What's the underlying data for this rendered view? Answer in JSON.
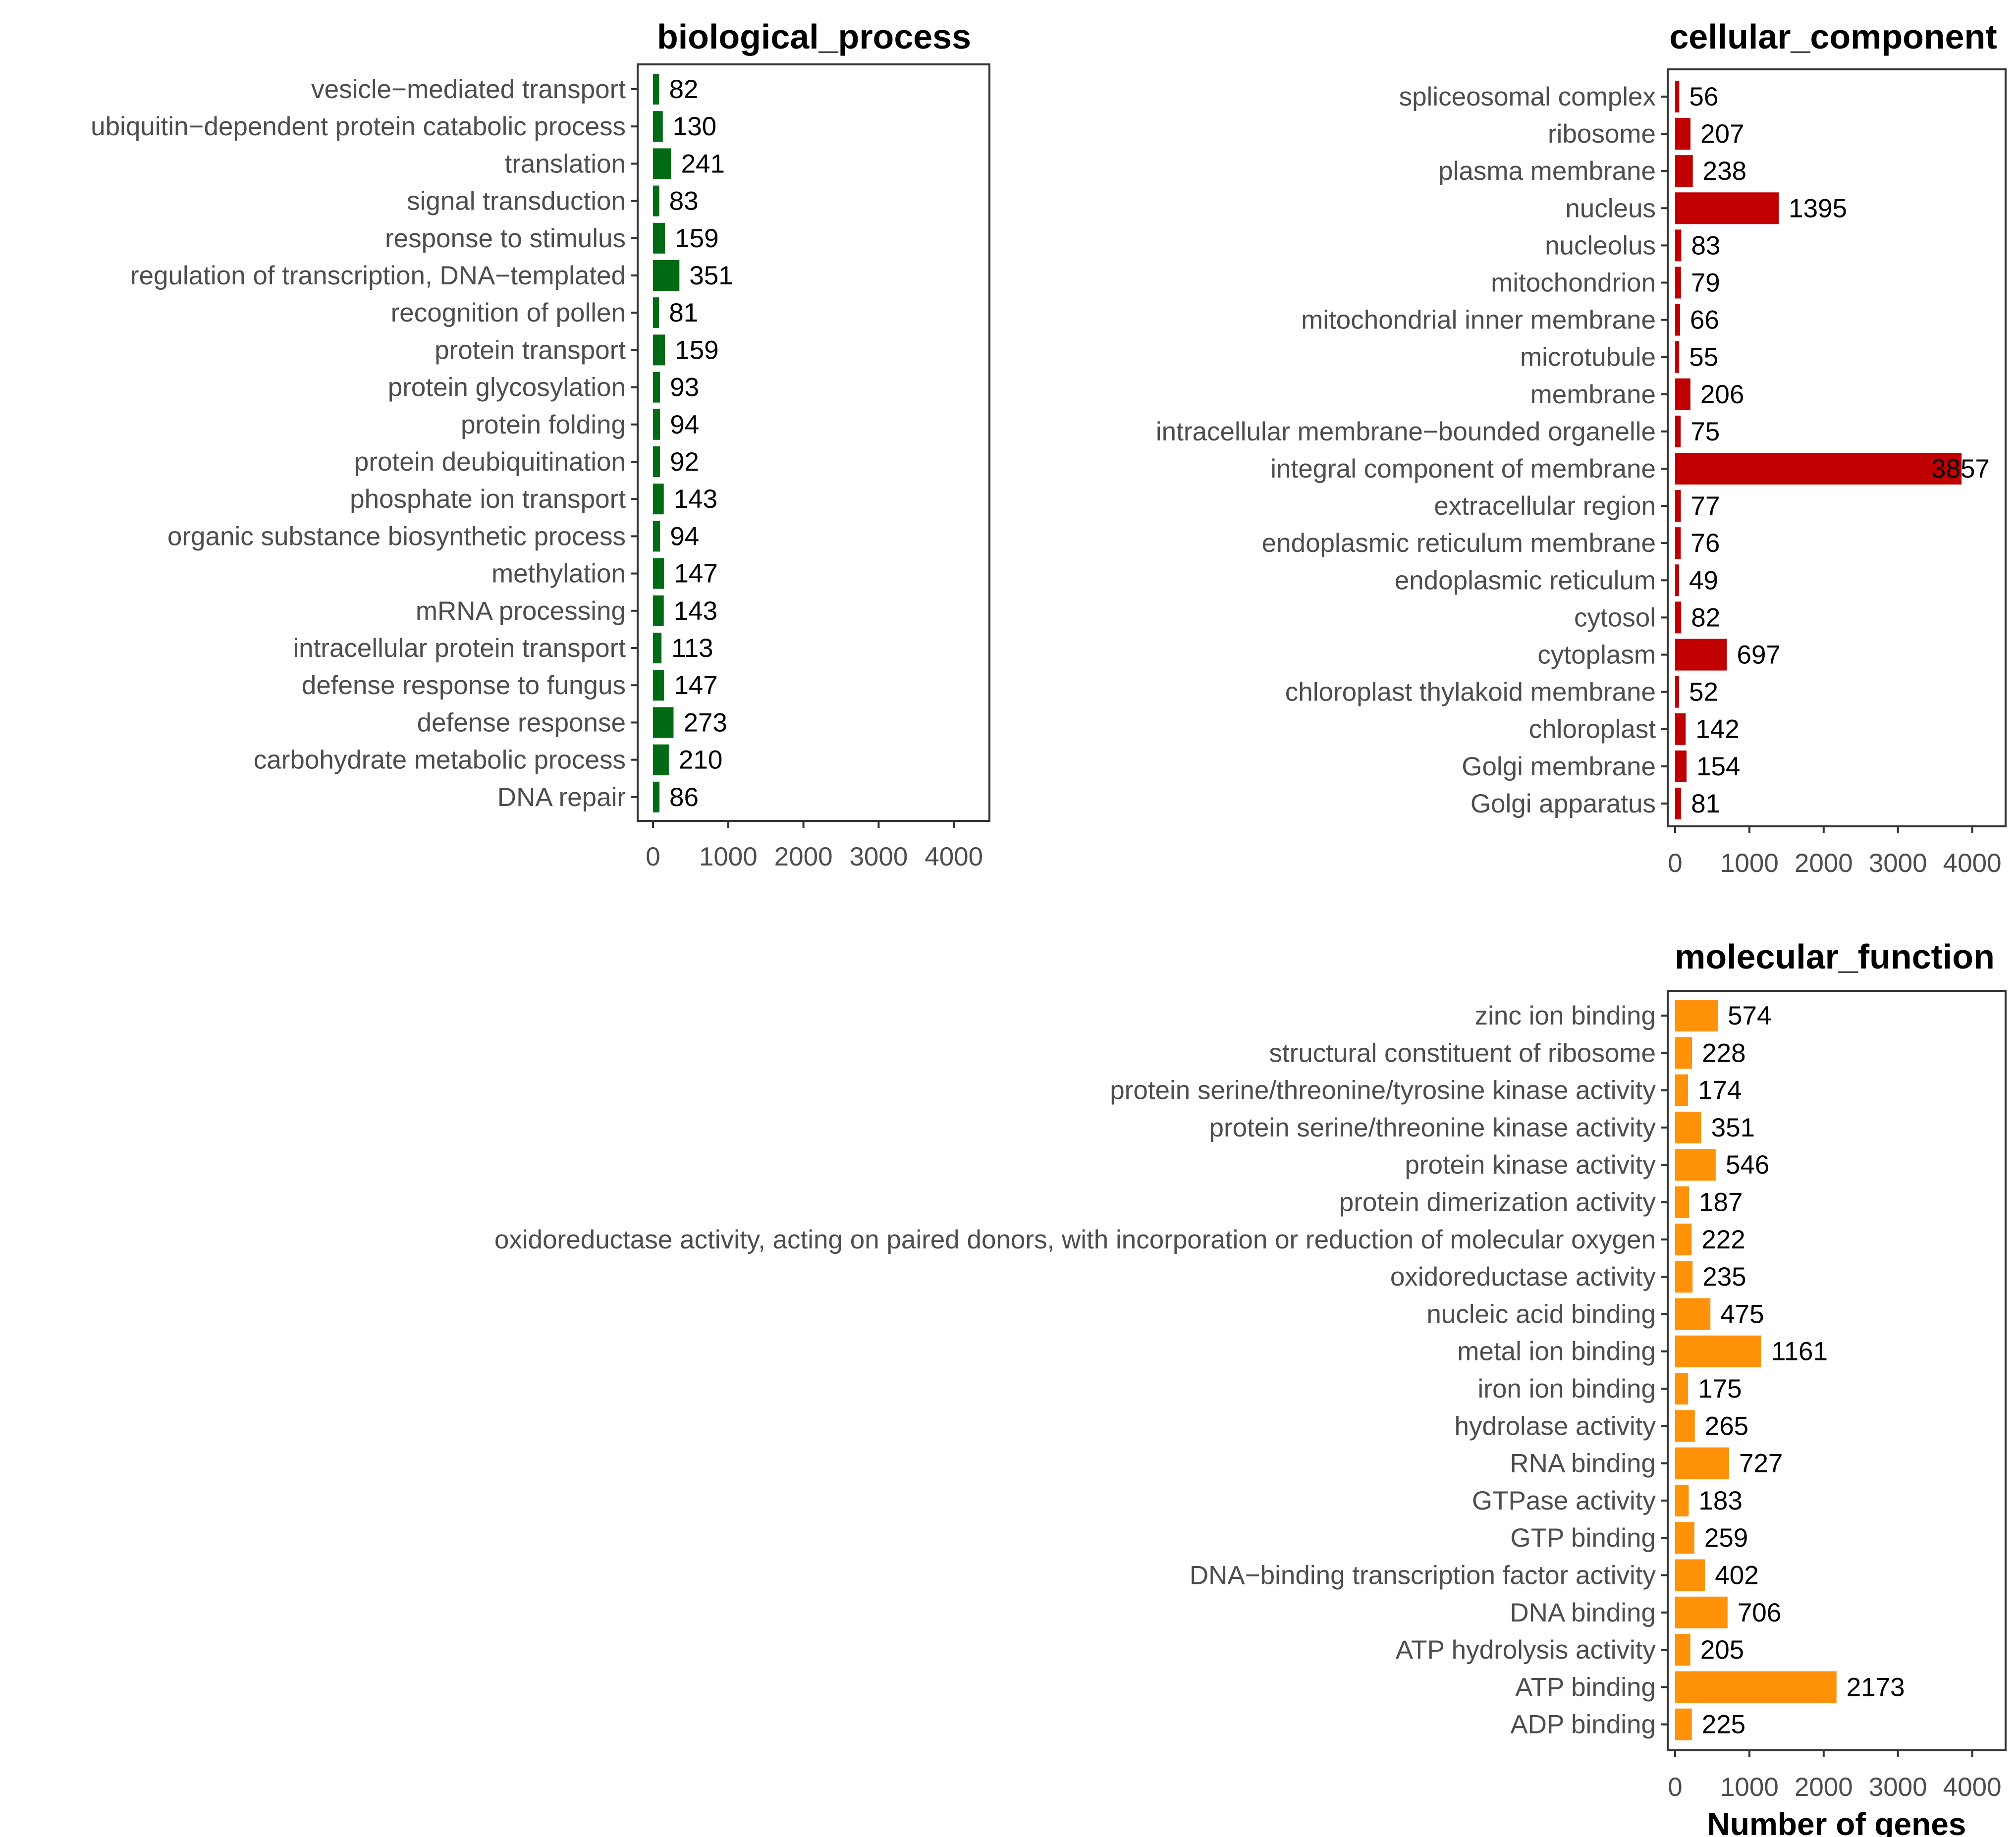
{
  "chart_data": [
    {
      "id": "bp",
      "type": "bar",
      "orientation": "horizontal",
      "title": "biological_process",
      "color": "#006b14",
      "xlim": [
        0,
        4200
      ],
      "xticks": [
        0,
        1000,
        2000,
        3000,
        4000
      ],
      "xlabel": "",
      "categories": [
        "vesicle−mediated transport",
        "ubiquitin−dependent  protein catabolic process",
        "translation",
        "signal transduction",
        "response to stimulus",
        "regulation of transcription, DNA−templated",
        "recognition  of pollen",
        "protein transport",
        "protein glycosylation",
        "protein folding",
        "protein deubiquitination",
        "phosphate ion transport",
        "organic substance biosynthetic process",
        "methylation",
        "mRNA processing",
        "intracellular protein transport",
        "defense response to fungus",
        "defense response",
        "carbohydrate metabolic process",
        "DNA  repair"
      ],
      "values": [
        82,
        130,
        241,
        83,
        159,
        351,
        81,
        159,
        93,
        94,
        92,
        143,
        94,
        147,
        143,
        113,
        147,
        273,
        210,
        86
      ]
    },
    {
      "id": "cc",
      "type": "bar",
      "orientation": "horizontal",
      "title": "cellular_component",
      "color": "#c00000",
      "xlim": [
        0,
        4400
      ],
      "xticks": [
        0,
        1000,
        2000,
        3000,
        4000
      ],
      "xlabel": "",
      "categories": [
        "spliceosomal complex",
        "ribosome",
        "plasma membrane",
        "nucleus",
        "nucleolus",
        "mitochondrion",
        "mitochondrial inner membrane",
        "microtubule",
        "membrane",
        "intracellular membrane−bounded organelle",
        "integral component of membrane",
        "extracellular region",
        "endoplasmic reticulum membrane",
        "endoplasmic reticulum",
        "cytosol",
        "cytoplasm",
        "chloroplast thylakoid membrane",
        "chloroplast",
        "Golgi  membrane",
        "Golgi  apparatus"
      ],
      "values": [
        56,
        207,
        238,
        1395,
        83,
        79,
        66,
        55,
        206,
        75,
        3857,
        77,
        76,
        49,
        82,
        697,
        52,
        142,
        154,
        81
      ]
    },
    {
      "id": "mf",
      "type": "bar",
      "orientation": "horizontal",
      "title": "molecular_function",
      "color": "#ff9209",
      "xlim": [
        0,
        4400
      ],
      "xticks": [
        0,
        1000,
        2000,
        3000,
        4000
      ],
      "xlabel": "Number of genes",
      "categories": [
        "zinc ion binding",
        "structural constituent of ribosome",
        "protein serine/threonine/tyrosine kinase activity",
        "protein serine/threonine kinase activity",
        "protein kinase activity",
        "protein dimerization activity",
        "oxidoreductase activity, acting on paired donors, with incorporation  or reduction of molecular oxygen",
        "oxidoreductase activity",
        "nucleic acid binding",
        "metal ion binding",
        "iron ion binding",
        "hydrolase activity",
        "RNA  binding",
        "GTPase activity",
        "GTP  binding",
        "DNA−binding   transcription factor activity",
        "DNA  binding",
        "ATP hydrolysis activity",
        "ATP binding",
        "ADP  binding"
      ],
      "values": [
        574,
        228,
        174,
        351,
        546,
        187,
        222,
        235,
        475,
        1161,
        175,
        265,
        727,
        183,
        259,
        402,
        706,
        205,
        2173,
        225
      ]
    }
  ]
}
